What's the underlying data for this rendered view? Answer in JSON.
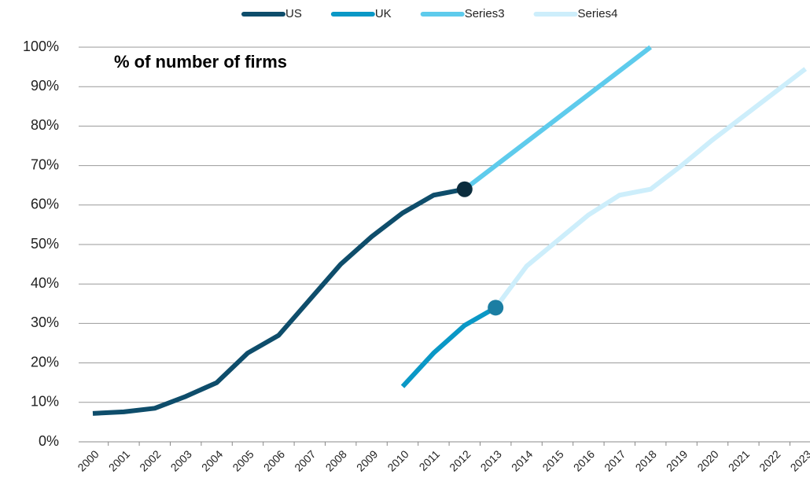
{
  "chart_data": {
    "type": "line",
    "title": "% of number of firms",
    "categories": [
      "2000",
      "2001",
      "2002",
      "2003",
      "2004",
      "2005",
      "2006",
      "2007",
      "2008",
      "2009",
      "2010",
      "2011",
      "2012",
      "2013",
      "2014",
      "2015",
      "2016",
      "2017",
      "2018",
      "2019",
      "2020",
      "2021",
      "2022",
      "2023"
    ],
    "series": [
      {
        "name": "US",
        "color": "#0e4d6b",
        "marker_color": "#0b2c3d",
        "values": [
          7.2,
          7.6,
          8.5,
          11.5,
          15,
          22.5,
          27,
          36,
          45,
          52,
          58,
          62.5,
          64,
          null,
          null,
          null,
          null,
          null,
          null,
          null,
          null,
          null,
          null,
          null
        ]
      },
      {
        "name": "UK",
        "color": "#0a98c6",
        "marker_color": "#1b7ea3",
        "values": [
          null,
          null,
          null,
          null,
          null,
          null,
          null,
          null,
          null,
          null,
          14,
          22.5,
          29.5,
          34,
          null,
          null,
          null,
          null,
          null,
          null,
          null,
          null,
          null,
          null
        ]
      },
      {
        "name": "Series3",
        "color": "#5ecbec",
        "values": [
          null,
          null,
          null,
          null,
          null,
          null,
          null,
          null,
          null,
          null,
          null,
          null,
          64,
          70,
          76,
          82,
          88,
          94,
          100,
          null,
          null,
          null,
          null,
          null
        ]
      },
      {
        "name": "Series4",
        "color": "#cdeefb",
        "values": [
          null,
          null,
          null,
          null,
          null,
          null,
          null,
          null,
          null,
          null,
          null,
          null,
          null,
          34,
          44.5,
          51,
          57.5,
          62.5,
          64,
          70,
          76.5,
          82.5,
          88.5,
          94.5
        ]
      }
    ],
    "ylim": [
      0,
      100
    ],
    "yticks": [
      {
        "value": 0,
        "label": "0%"
      },
      {
        "value": 10,
        "label": "10%"
      },
      {
        "value": 20,
        "label": "20%"
      },
      {
        "value": 30,
        "label": "30%"
      },
      {
        "value": 40,
        "label": "40%"
      },
      {
        "value": 50,
        "label": "50%"
      },
      {
        "value": 60,
        "label": "60%"
      },
      {
        "value": 70,
        "label": "70%"
      },
      {
        "value": 80,
        "label": "80%"
      },
      {
        "value": 90,
        "label": "90%"
      },
      {
        "value": 100,
        "label": "100%"
      }
    ],
    "grid": true,
    "legend": "top"
  }
}
